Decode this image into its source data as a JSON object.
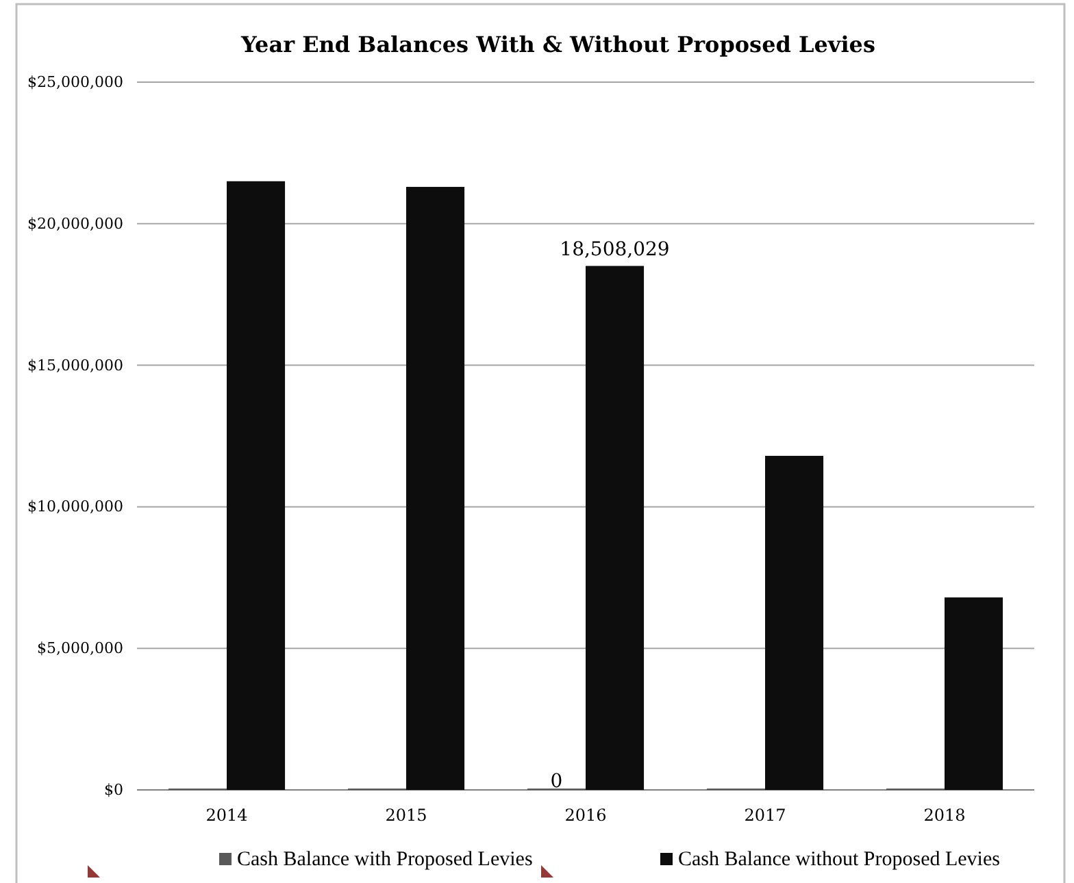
{
  "chart_data": {
    "type": "bar",
    "title": "Year End Balances With & Without Proposed Levies",
    "categories": [
      "2014",
      "2015",
      "2016",
      "2017",
      "2018"
    ],
    "series": [
      {
        "name": "Cash Balance with Proposed Levies",
        "color": "#595959",
        "values": [
          0,
          0,
          0,
          0,
          0
        ],
        "value_labels": [
          null,
          null,
          "0",
          null,
          null
        ]
      },
      {
        "name": "Cash Balance without Proposed Levies",
        "color": "#0d0d0d",
        "values": [
          21500000,
          21300000,
          18508029,
          11800000,
          6800000
        ],
        "value_labels": [
          null,
          null,
          "18,508,029",
          null,
          null
        ]
      }
    ],
    "ylim": [
      0,
      25000000
    ],
    "yticks": [
      {
        "value": 0,
        "label": "$0"
      },
      {
        "value": 5000000,
        "label": "$5,000,000"
      },
      {
        "value": 10000000,
        "label": "$10,000,000"
      },
      {
        "value": 15000000,
        "label": "$15,000,000"
      },
      {
        "value": 20000000,
        "label": "$20,000,000"
      },
      {
        "value": 25000000,
        "label": "$25,000,000"
      }
    ],
    "grid": "y",
    "legend": "bottom"
  }
}
